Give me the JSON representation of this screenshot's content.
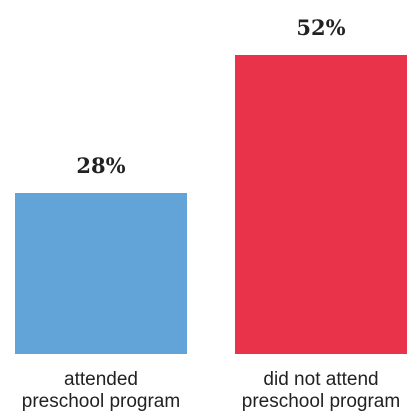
{
  "chart_data": {
    "type": "bar",
    "categories": [
      [
        "attended",
        "preschool program"
      ],
      [
        "did not attend",
        "preschool program"
      ]
    ],
    "values": [
      28,
      52
    ],
    "data_labels": [
      "28%",
      "52%"
    ],
    "colors": [
      "#62A3D8",
      "#E8334A"
    ],
    "title": "",
    "xlabel": "",
    "ylabel": "",
    "ylim": [
      0,
      52
    ],
    "grid": false,
    "legend": "none"
  }
}
